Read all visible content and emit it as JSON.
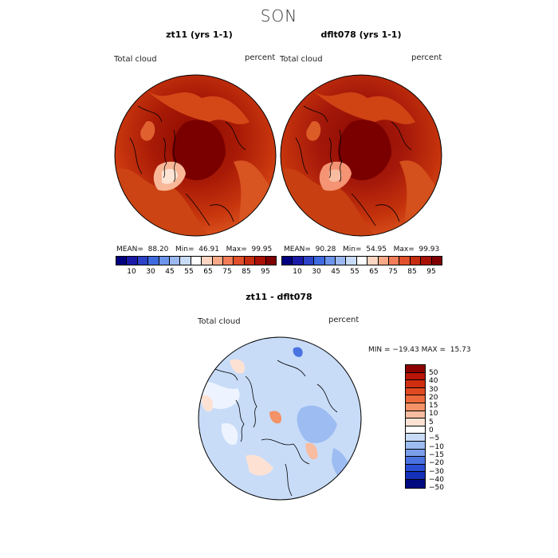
{
  "suptitle": "SON",
  "panels": [
    {
      "title": "zt11 (yrs 1-1)",
      "variable": "Total cloud",
      "units": "percent",
      "stats": {
        "mean_label": "MEAN=",
        "mean": "88.20",
        "min_label": "Min=",
        "min": "46.91",
        "max_label": "Max=",
        "max": "99.95"
      }
    },
    {
      "title": "dflt078 (yrs 1-1)",
      "variable": "Total cloud",
      "units": "percent",
      "stats": {
        "mean_label": "MEAN=",
        "mean": "90.28",
        "min_label": "Min=",
        "min": "54.95",
        "max_label": "Max=",
        "max": "99.93"
      }
    }
  ],
  "colorbar_top": {
    "ticks": [
      "10",
      "30",
      "45",
      "55",
      "65",
      "75",
      "85",
      "95"
    ],
    "colors": [
      "#00007f",
      "#1a1aa8",
      "#2c42c8",
      "#3e6ae0",
      "#6c94ea",
      "#9cb8f0",
      "#c8dcf8",
      "#ffffff",
      "#fcd6c2",
      "#f8aa88",
      "#f07c58",
      "#e0502c",
      "#c62c10",
      "#a81004",
      "#7f0000"
    ]
  },
  "diff_panel": {
    "title": "zt11 - dflt078",
    "variable": "Total cloud",
    "units": "percent",
    "stats": "MIN = −19.43 MAX =  15.73",
    "ticks": [
      "50",
      "40",
      "30",
      "20",
      "15",
      "10",
      "5",
      "0",
      "−5",
      "−10",
      "−15",
      "−20",
      "−30",
      "−40",
      "−50"
    ],
    "colors": [
      "#8b0000",
      "#b81408",
      "#d02e10",
      "#e04a20",
      "#ec6a3c",
      "#f49268",
      "#f8bca0",
      "#fde2d4",
      "#ffffff",
      "#c8dcf8",
      "#9cbcf2",
      "#7a9eea",
      "#4a72e0",
      "#2a4ed4",
      "#1430b8",
      "#000a80"
    ]
  },
  "chart_data": [
    {
      "type": "heatmap",
      "title": "zt11 (yrs 1-1)",
      "projection": "north polar stereographic",
      "variable": "Total cloud",
      "units": "percent",
      "mean": 88.2,
      "min": 46.91,
      "max": 99.95
    },
    {
      "type": "heatmap",
      "title": "dflt078 (yrs 1-1)",
      "projection": "north polar stereographic",
      "variable": "Total cloud",
      "units": "percent",
      "mean": 90.28,
      "min": 54.95,
      "max": 99.93
    },
    {
      "type": "heatmap",
      "title": "zt11 - dflt078",
      "projection": "north polar stereographic",
      "variable": "Total cloud",
      "units": "percent",
      "min": -19.43,
      "max": 15.73
    }
  ]
}
